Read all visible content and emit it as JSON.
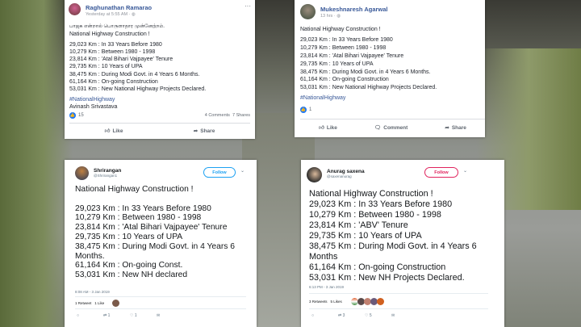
{
  "posts": [
    {
      "platform": "facebook",
      "author": "Raghunathan Ramarao",
      "time": "Yesterday at 5:55 AM",
      "tamil": "பாஜக என்றால் பொருளாதார முன்னேற்றம்.",
      "lines": [
        "National Highway Construction !",
        "29,023 Km : In 33 Years Before 1980",
        "10,279 Km : Between 1980 - 1998",
        "23,814 Km : 'Atal Bihari Vajpayee' Tenure",
        "29,735 Km : 10 Years of UPA",
        "38,475 Km : During Modi Govt. in 4 Years 6 Months.",
        "61,164 Km : On-going Construction",
        "53,031 Km : New National Highway Projects Declared."
      ],
      "hashtag": "#NationalHighway",
      "signature": "Avinash Srivastava",
      "reactions": "15",
      "comments": "4 Comments",
      "shares": "7 Shares",
      "like": "Like",
      "share": "Share"
    },
    {
      "platform": "facebook",
      "author": "Mukeshnaresh Agarwal",
      "time": "13 hrs",
      "lines": [
        "National Highway Construction !",
        "29,023 Km : In 33 Years Before 1980",
        "10,279 Km : Between 1980 - 1998",
        "23,814 Km : 'Atal Bihari Vajpayee' Tenure",
        "29,735 Km : 10 Years of UPA",
        "38,475 Km : During Modi Govt. in 4 Years 6 Months.",
        "61,164 Km : On-going Construction",
        "53,031 Km : New National Highway Projects Declared."
      ],
      "hashtag": "#NationalHighway",
      "reactions": "1",
      "like": "Like",
      "comment": "Comment",
      "share": "Share"
    },
    {
      "platform": "twitter",
      "author": "Shrirangan",
      "handle": "@Shrirangan1",
      "follow": "Follow",
      "lines": [
        "National Highway Construction !",
        "",
        "29,023 Km : In 33 Years Before 1980",
        "10,279 Km : Between 1980 - 1998",
        "23,814 Km : 'Atal Bihari Vajpayee' Tenure",
        "29,735 Km : 10 Years of UPA",
        "38,475 Km : During Modi Govt. in 4 Years 6",
        "Months.",
        "61,164 Km : On-going Const.",
        "53,031 Km : New NH declared"
      ],
      "time": "8:08 AM - 3 Jan 2019",
      "retweets": "1 Retweet",
      "likes": "1 Like",
      "retweet_count": "1",
      "like_count": "1",
      "accent": "#1da1f2"
    },
    {
      "platform": "twitter",
      "author": "Anurag saxena",
      "handle": "@saxenanurag",
      "follow": "Follow",
      "lines": [
        "National Highway Construction !",
        "29,023 Km : In 33 Years Before 1980",
        "10,279 Km : Between 1980 - 1998",
        "23,814 Km : 'ABV' Tenure",
        "29,735 Km : 10 Years of UPA",
        "38,475 Km : During Modi Govt. in 4 Years 6",
        "Months",
        "61,164 Km : On-going Construction",
        "53,031 Km : New NH Projects Declared."
      ],
      "time": "6:13 PM - 3 Jan 2019",
      "retweets": "3 Retweets",
      "likes": "5 Likes",
      "retweet_count": "3",
      "like_count": "5",
      "accent": "#e0245e"
    }
  ]
}
